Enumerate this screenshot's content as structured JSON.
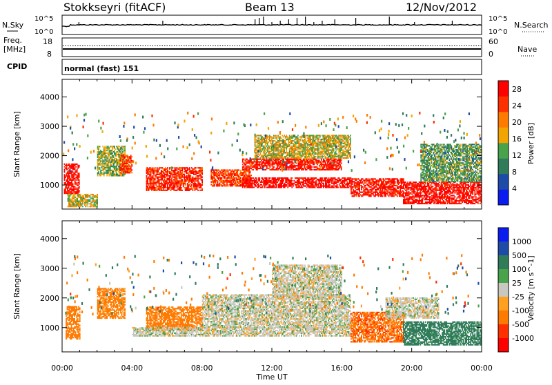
{
  "header": {
    "station": "Stokkseyri (fitACF)",
    "beam": "Beam 13",
    "date": "12/Nov/2012"
  },
  "noise_panel": {
    "left_label": "N.Sky",
    "right_label": "N.Search",
    "left_ticks": [
      "10^5",
      "10^0"
    ],
    "right_ticks": [
      "10^5",
      "10^0"
    ]
  },
  "freq_panel": {
    "left_label_line1": "Freq.",
    "left_label_line2": "[MHz]",
    "right_label": "Nave",
    "left_ticks": [
      "18",
      "8"
    ],
    "right_ticks": [
      "60",
      "0"
    ]
  },
  "cpid_panel": {
    "label": "CPID",
    "mode": "normal (fast) 151"
  },
  "colors": {
    "power": [
      "#0b1cf0",
      "#1e4aa8",
      "#2f7b5a",
      "#49a34a",
      "#f2a500",
      "#ff7a00",
      "#ff3000",
      "#ff0000"
    ],
    "velocity": [
      "#0b1cf0",
      "#1e4aa8",
      "#2f7b5a",
      "#49a34a",
      "#c8c8c0",
      "#ffa020",
      "#ff7a00",
      "#ff3000",
      "#ff0000"
    ],
    "ground_scatter": "#b8b8b0"
  },
  "chart_data": [
    {
      "type": "heatmap",
      "name": "Power",
      "xlabel": "",
      "ylabel": "Slant Range [km]",
      "x_ticks": [
        "00:00",
        "04:00",
        "08:00",
        "12:00",
        "16:00",
        "20:00",
        "00:00"
      ],
      "x_range_hours": [
        0,
        24
      ],
      "y_ticks": [
        1000,
        2000,
        3000,
        4000
      ],
      "y_range_km": [
        180,
        4600
      ],
      "colorbar_label": "Power [dB]",
      "colorbar_ticks": [
        4,
        8,
        12,
        16,
        20,
        24,
        28
      ],
      "colorbar_range": [
        0,
        30
      ],
      "regions": [
        {
          "t0": 0.1,
          "t1": 1.0,
          "r0": 700,
          "r1": 1700,
          "level": 28
        },
        {
          "t0": 0.3,
          "t1": 2.0,
          "r0": 250,
          "r1": 700,
          "level": 16
        },
        {
          "t0": 2.0,
          "t1": 3.6,
          "r0": 1300,
          "r1": 2300,
          "level": 14
        },
        {
          "t0": 3.3,
          "t1": 4.0,
          "r0": 1400,
          "r1": 2000,
          "level": 24
        },
        {
          "t0": 4.8,
          "t1": 8.0,
          "r0": 800,
          "r1": 1600,
          "level": 26
        },
        {
          "t0": 8.5,
          "t1": 10.8,
          "r0": 950,
          "r1": 1500,
          "level": 24
        },
        {
          "t0": 10.3,
          "t1": 16.5,
          "r0": 900,
          "r1": 1250,
          "level": 29
        },
        {
          "t0": 10.3,
          "t1": 16.0,
          "r0": 1500,
          "r1": 1900,
          "level": 27
        },
        {
          "t0": 11.0,
          "t1": 16.5,
          "r0": 1900,
          "r1": 2700,
          "level": 16
        },
        {
          "t0": 16.5,
          "t1": 19.5,
          "r0": 600,
          "r1": 1200,
          "level": 27
        },
        {
          "t0": 19.5,
          "t1": 24.0,
          "r0": 350,
          "r1": 1100,
          "level": 28
        },
        {
          "t0": 20.5,
          "t1": 24.0,
          "r0": 1100,
          "r1": 2400,
          "level": 12
        }
      ]
    },
    {
      "type": "heatmap",
      "name": "Velocity",
      "xlabel": "Time UT",
      "ylabel": "Slant Range [km]",
      "x_ticks": [
        "00:00",
        "04:00",
        "08:00",
        "12:00",
        "16:00",
        "20:00",
        "00:00"
      ],
      "x_range_hours": [
        0,
        24
      ],
      "y_ticks": [
        1000,
        2000,
        3000,
        4000
      ],
      "y_range_km": [
        180,
        4600
      ],
      "colorbar_label": "Velocity [m s^-1]",
      "colorbar_ticks": [
        1000,
        500,
        100,
        25,
        -25,
        -100,
        -500,
        -1000
      ],
      "regions": [
        {
          "t0": 0.2,
          "t1": 1.0,
          "r0": 600,
          "r1": 1700,
          "level": -300
        },
        {
          "t0": 2.0,
          "t1": 3.6,
          "r0": 1300,
          "r1": 2300,
          "level": -150
        },
        {
          "t0": 4.8,
          "t1": 8.0,
          "r0": 900,
          "r1": 1700,
          "level": -200
        },
        {
          "t0": 4.0,
          "t1": 16.5,
          "r0": 700,
          "r1": 1000,
          "level": 0
        },
        {
          "t0": 8.0,
          "t1": 16.5,
          "r0": 1000,
          "r1": 2100,
          "level": 0
        },
        {
          "t0": 12.0,
          "t1": 16.0,
          "r0": 2000,
          "r1": 3100,
          "level": 0
        },
        {
          "t0": 16.5,
          "t1": 19.5,
          "r0": 500,
          "r1": 1500,
          "level": -400
        },
        {
          "t0": 19.5,
          "t1": 24.0,
          "r0": 400,
          "r1": 1200,
          "level": 200
        },
        {
          "t0": 18.5,
          "t1": 21.5,
          "r0": 1300,
          "r1": 2000,
          "level": 0
        }
      ]
    }
  ]
}
